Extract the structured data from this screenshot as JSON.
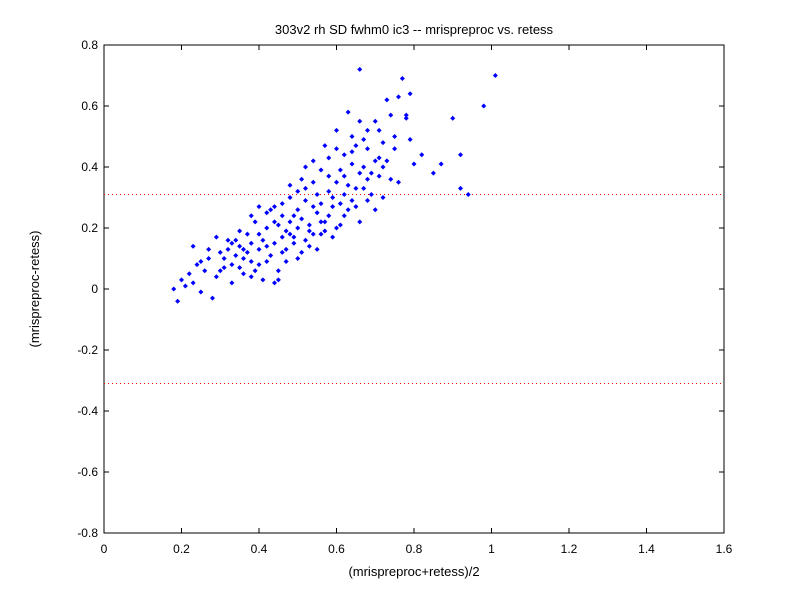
{
  "chart_data": {
    "type": "scatter",
    "title": "303v2 rh SD fwhm0 ic3 -- mrispreproc vs. retess",
    "xlabel": "(mrispreproc+retess)/2",
    "ylabel": "(mrispreproc-retess)",
    "xlim": [
      0,
      1.6
    ],
    "ylim": [
      -0.8,
      0.8
    ],
    "xticks": [
      0,
      0.2,
      0.4,
      0.6,
      0.8,
      1,
      1.2,
      1.4,
      1.6
    ],
    "xtick_labels": [
      "0",
      "0.2",
      "0.4",
      "0.6",
      "0.8",
      "1",
      "1.2",
      "1.4",
      "1.6"
    ],
    "yticks": [
      -0.8,
      -0.6,
      -0.4,
      -0.2,
      0,
      0.2,
      0.4,
      0.6,
      0.8
    ],
    "ytick_labels": [
      "-0.8",
      "-0.6",
      "-0.4",
      "-0.2",
      "0",
      "0.2",
      "0.4",
      "0.6",
      "0.8"
    ],
    "grid": false,
    "marker_color": "#0000ff",
    "reference_line_color": "#ff0000",
    "reference_lines_y": [
      0.31,
      -0.31
    ],
    "points": [
      [
        0.18,
        0.0
      ],
      [
        0.19,
        -0.04
      ],
      [
        0.2,
        0.03
      ],
      [
        0.21,
        0.01
      ],
      [
        0.22,
        0.05
      ],
      [
        0.23,
        0.02
      ],
      [
        0.24,
        0.08
      ],
      [
        0.25,
        -0.01
      ],
      [
        0.26,
        0.06
      ],
      [
        0.27,
        0.1
      ],
      [
        0.28,
        -0.03
      ],
      [
        0.29,
        0.04
      ],
      [
        0.3,
        0.12
      ],
      [
        0.31,
        0.07
      ],
      [
        0.32,
        0.16
      ],
      [
        0.33,
        0.02
      ],
      [
        0.34,
        0.11
      ],
      [
        0.35,
        0.14
      ],
      [
        0.36,
        0.05
      ],
      [
        0.37,
        0.18
      ],
      [
        0.38,
        0.09
      ],
      [
        0.39,
        0.22
      ],
      [
        0.4,
        0.13
      ],
      [
        0.41,
        0.03
      ],
      [
        0.42,
        0.2
      ],
      [
        0.43,
        0.26
      ],
      [
        0.44,
        0.15
      ],
      [
        0.45,
        0.06
      ],
      [
        0.46,
        0.28
      ],
      [
        0.47,
        0.19
      ],
      [
        0.48,
        0.34
      ],
      [
        0.49,
        0.24
      ],
      [
        0.5,
        0.1
      ],
      [
        0.51,
        0.36
      ],
      [
        0.52,
        0.29
      ],
      [
        0.53,
        0.21
      ],
      [
        0.54,
        0.42
      ],
      [
        0.55,
        0.31
      ],
      [
        0.56,
        0.18
      ],
      [
        0.57,
        0.47
      ],
      [
        0.58,
        0.37
      ],
      [
        0.59,
        0.27
      ],
      [
        0.6,
        0.52
      ],
      [
        0.61,
        0.39
      ],
      [
        0.62,
        0.24
      ],
      [
        0.63,
        0.58
      ],
      [
        0.64,
        0.45
      ],
      [
        0.65,
        0.33
      ],
      [
        0.66,
        0.72
      ],
      [
        0.67,
        0.49
      ],
      [
        0.68,
        0.36
      ],
      [
        0.7,
        0.55
      ],
      [
        0.71,
        0.43
      ],
      [
        0.72,
        0.3
      ],
      [
        0.74,
        0.57
      ],
      [
        0.75,
        0.46
      ],
      [
        0.76,
        0.35
      ],
      [
        0.77,
        0.69
      ],
      [
        0.78,
        0.57
      ],
      [
        0.79,
        0.64
      ],
      [
        0.8,
        0.41
      ],
      [
        0.82,
        0.44
      ],
      [
        0.85,
        0.38
      ],
      [
        0.87,
        0.41
      ],
      [
        0.9,
        0.56
      ],
      [
        0.92,
        0.44
      ],
      [
        0.92,
        0.33
      ],
      [
        0.94,
        0.31
      ],
      [
        0.98,
        0.6
      ],
      [
        1.01,
        0.7
      ],
      [
        0.23,
        0.14
      ],
      [
        0.25,
        0.09
      ],
      [
        0.27,
        0.13
      ],
      [
        0.29,
        0.17
      ],
      [
        0.31,
        0.1
      ],
      [
        0.33,
        0.08
      ],
      [
        0.35,
        0.19
      ],
      [
        0.37,
        0.12
      ],
      [
        0.39,
        0.06
      ],
      [
        0.41,
        0.16
      ],
      [
        0.43,
        0.11
      ],
      [
        0.45,
        0.21
      ],
      [
        0.47,
        0.13
      ],
      [
        0.49,
        0.17
      ],
      [
        0.51,
        0.23
      ],
      [
        0.53,
        0.14
      ],
      [
        0.55,
        0.25
      ],
      [
        0.57,
        0.19
      ],
      [
        0.59,
        0.3
      ],
      [
        0.61,
        0.28
      ],
      [
        0.63,
        0.34
      ],
      [
        0.65,
        0.27
      ],
      [
        0.67,
        0.4
      ],
      [
        0.69,
        0.31
      ],
      [
        0.71,
        0.37
      ],
      [
        0.73,
        0.42
      ],
      [
        0.75,
        0.5
      ],
      [
        0.33,
        0.15
      ],
      [
        0.35,
        0.07
      ],
      [
        0.38,
        0.24
      ],
      [
        0.4,
        0.27
      ],
      [
        0.42,
        0.09
      ],
      [
        0.44,
        0.22
      ],
      [
        0.46,
        0.12
      ],
      [
        0.48,
        0.3
      ],
      [
        0.5,
        0.26
      ],
      [
        0.52,
        0.16
      ],
      [
        0.54,
        0.35
      ],
      [
        0.56,
        0.22
      ],
      [
        0.58,
        0.32
      ],
      [
        0.6,
        0.2
      ],
      [
        0.62,
        0.44
      ],
      [
        0.64,
        0.29
      ],
      [
        0.66,
        0.38
      ],
      [
        0.68,
        0.46
      ],
      [
        0.7,
        0.26
      ],
      [
        0.72,
        0.48
      ],
      [
        0.36,
        0.13
      ],
      [
        0.38,
        0.04
      ],
      [
        0.4,
        0.18
      ],
      [
        0.42,
        0.25
      ],
      [
        0.44,
        0.02
      ],
      [
        0.46,
        0.17
      ],
      [
        0.48,
        0.22
      ],
      [
        0.5,
        0.32
      ],
      [
        0.52,
        0.4
      ],
      [
        0.54,
        0.18
      ],
      [
        0.56,
        0.28
      ],
      [
        0.58,
        0.43
      ],
      [
        0.6,
        0.35
      ],
      [
        0.62,
        0.31
      ],
      [
        0.64,
        0.5
      ],
      [
        0.66,
        0.22
      ],
      [
        0.68,
        0.29
      ],
      [
        0.3,
        0.06
      ],
      [
        0.32,
        0.13
      ],
      [
        0.34,
        0.16
      ],
      [
        0.36,
        0.1
      ],
      [
        0.38,
        0.15
      ],
      [
        0.4,
        0.08
      ],
      [
        0.42,
        0.14
      ],
      [
        0.44,
        0.27
      ],
      [
        0.46,
        0.24
      ],
      [
        0.48,
        0.18
      ],
      [
        0.5,
        0.2
      ],
      [
        0.52,
        0.33
      ],
      [
        0.54,
        0.27
      ],
      [
        0.56,
        0.39
      ],
      [
        0.58,
        0.24
      ],
      [
        0.6,
        0.46
      ],
      [
        0.62,
        0.37
      ],
      [
        0.64,
        0.41
      ],
      [
        0.66,
        0.55
      ],
      [
        0.68,
        0.52
      ],
      [
        0.7,
        0.42
      ],
      [
        0.45,
        0.03
      ],
      [
        0.47,
        0.09
      ],
      [
        0.49,
        0.15
      ],
      [
        0.51,
        0.12
      ],
      [
        0.53,
        0.19
      ],
      [
        0.55,
        0.13
      ],
      [
        0.57,
        0.22
      ],
      [
        0.59,
        0.17
      ],
      [
        0.61,
        0.21
      ],
      [
        0.63,
        0.26
      ],
      [
        0.65,
        0.47
      ],
      [
        0.67,
        0.33
      ],
      [
        0.69,
        0.38
      ],
      [
        0.71,
        0.52
      ],
      [
        0.73,
        0.62
      ],
      [
        0.76,
        0.63
      ],
      [
        0.78,
        0.56
      ],
      [
        0.79,
        0.49
      ],
      [
        0.74,
        0.36
      ],
      [
        0.72,
        0.4
      ]
    ]
  }
}
